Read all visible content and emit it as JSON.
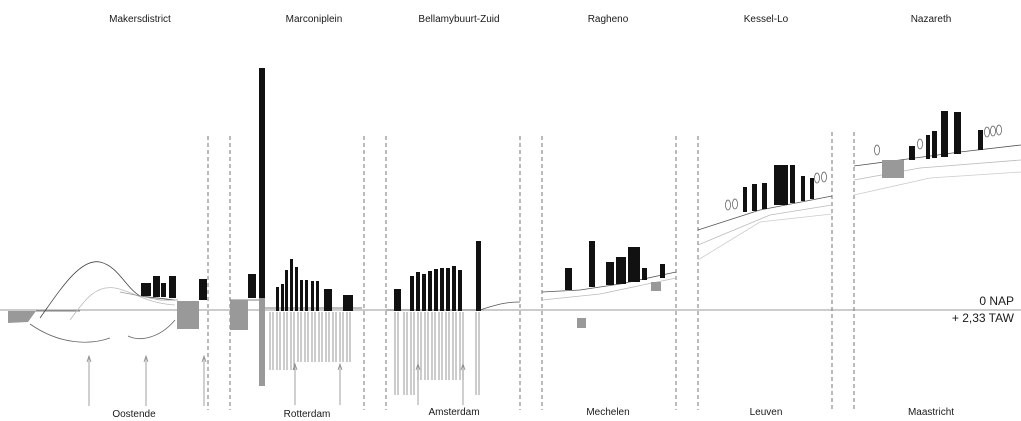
{
  "districts": [
    {
      "name": "Makersdistrict",
      "city": "Oostende"
    },
    {
      "name": "Marconiplein",
      "city": "Rotterdam"
    },
    {
      "name": "Bellamybuurt-Zuid",
      "city": "Amsterdam"
    },
    {
      "name": "Ragheno",
      "city": "Mechelen"
    },
    {
      "name": "Kessel-Lo",
      "city": "Leuven"
    },
    {
      "name": "Nazareth",
      "city": "Maastricht"
    }
  ],
  "reference": {
    "nap": "0 NAP",
    "taw": "+ 2,33 TAW"
  }
}
